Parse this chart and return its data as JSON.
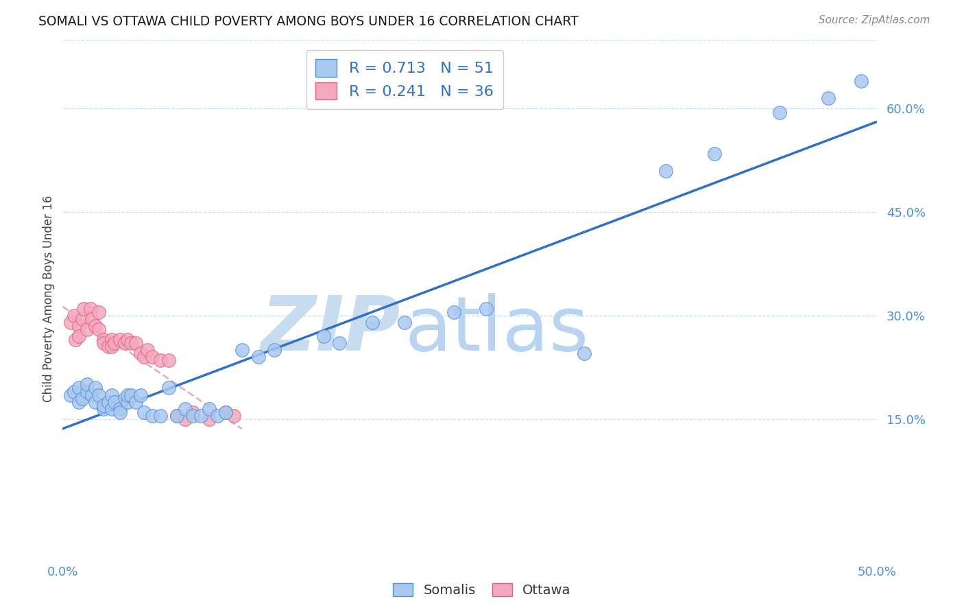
{
  "title": "SOMALI VS OTTAWA CHILD POVERTY AMONG BOYS UNDER 16 CORRELATION CHART",
  "source": "Source: ZipAtlas.com",
  "ylabel": "Child Poverty Among Boys Under 16",
  "xlim": [
    0.0,
    0.5
  ],
  "ylim": [
    -0.05,
    0.7
  ],
  "xtick_positions": [
    0.0,
    0.1,
    0.2,
    0.3,
    0.4,
    0.5
  ],
  "xtick_labels": [
    "0.0%",
    "",
    "",
    "",
    "",
    "50.0%"
  ],
  "ytick_vals_right": [
    0.15,
    0.3,
    0.45,
    0.6
  ],
  "ytick_labels_right": [
    "15.0%",
    "30.0%",
    "45.0%",
    "60.0%"
  ],
  "somali_R": "0.713",
  "somali_N": "51",
  "ottawa_R": "0.241",
  "ottawa_N": "36",
  "somali_color": "#a8c8f0",
  "ottawa_color": "#f4a8c0",
  "somali_edge_color": "#5590d0",
  "ottawa_edge_color": "#e06080",
  "somali_line_color": "#3070c8",
  "ottawa_line_color": "#e06080",
  "dashed_line_color": "#e8b0c0",
  "watermark_zip_color": "#c8dcf0",
  "watermark_atlas_color": "#b8d4f0",
  "somali_points_x": [
    0.005,
    0.007,
    0.01,
    0.01,
    0.012,
    0.015,
    0.015,
    0.018,
    0.02,
    0.02,
    0.022,
    0.025,
    0.025,
    0.028,
    0.03,
    0.03,
    0.032,
    0.035,
    0.035,
    0.038,
    0.04,
    0.04,
    0.042,
    0.045,
    0.048,
    0.05,
    0.055,
    0.06,
    0.065,
    0.07,
    0.075,
    0.08,
    0.085,
    0.09,
    0.095,
    0.1,
    0.11,
    0.12,
    0.13,
    0.16,
    0.17,
    0.19,
    0.21,
    0.24,
    0.26,
    0.32,
    0.37,
    0.4,
    0.44,
    0.47,
    0.49
  ],
  "somali_points_y": [
    0.185,
    0.19,
    0.195,
    0.175,
    0.18,
    0.19,
    0.2,
    0.185,
    0.195,
    0.175,
    0.185,
    0.165,
    0.17,
    0.175,
    0.185,
    0.165,
    0.175,
    0.165,
    0.16,
    0.18,
    0.175,
    0.185,
    0.185,
    0.175,
    0.185,
    0.16,
    0.155,
    0.155,
    0.195,
    0.155,
    0.165,
    0.155,
    0.155,
    0.165,
    0.155,
    0.16,
    0.25,
    0.24,
    0.25,
    0.27,
    0.26,
    0.29,
    0.29,
    0.305,
    0.31,
    0.245,
    0.51,
    0.535,
    0.595,
    0.615,
    0.64
  ],
  "ottawa_points_x": [
    0.005,
    0.007,
    0.008,
    0.01,
    0.01,
    0.012,
    0.013,
    0.015,
    0.017,
    0.018,
    0.02,
    0.022,
    0.022,
    0.025,
    0.025,
    0.028,
    0.03,
    0.03,
    0.032,
    0.035,
    0.038,
    0.04,
    0.042,
    0.045,
    0.048,
    0.05,
    0.052,
    0.055,
    0.06,
    0.065,
    0.07,
    0.075,
    0.08,
    0.09,
    0.1,
    0.105
  ],
  "ottawa_points_y": [
    0.29,
    0.3,
    0.265,
    0.285,
    0.27,
    0.295,
    0.31,
    0.28,
    0.31,
    0.295,
    0.285,
    0.305,
    0.28,
    0.265,
    0.26,
    0.255,
    0.265,
    0.255,
    0.26,
    0.265,
    0.26,
    0.265,
    0.26,
    0.26,
    0.245,
    0.24,
    0.25,
    0.24,
    0.235,
    0.235,
    0.155,
    0.15,
    0.16,
    0.15,
    0.16,
    0.155
  ]
}
